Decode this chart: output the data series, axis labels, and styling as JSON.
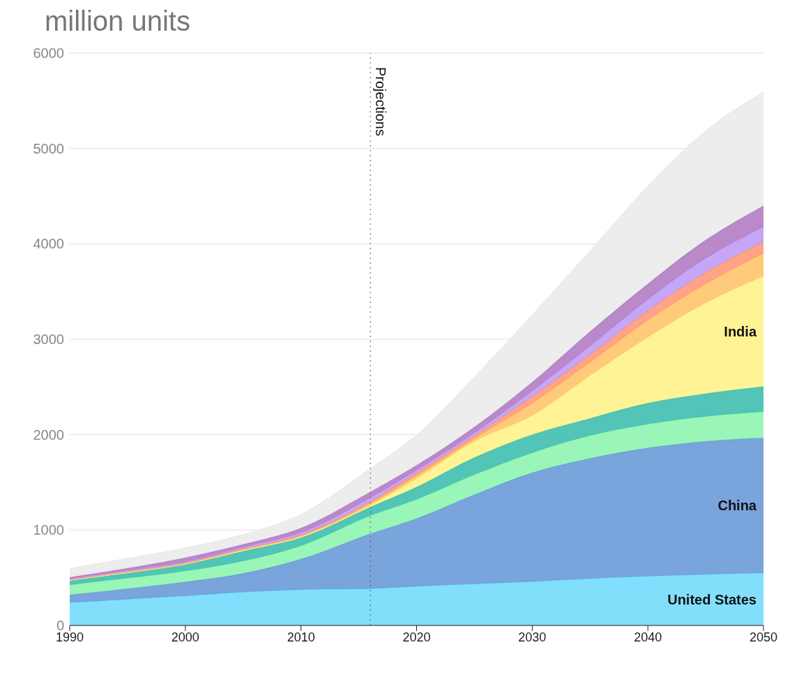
{
  "chart_data": {
    "type": "area",
    "ylabel": "million units",
    "stacked": true,
    "grid": "y",
    "x": [
      1990,
      1995,
      2000,
      2005,
      2010,
      2016,
      2020,
      2025,
      2030,
      2035,
      2040,
      2045,
      2050
    ],
    "xlim": [
      1990,
      2050
    ],
    "xticks": [
      1990,
      2000,
      2010,
      2020,
      2030,
      2040,
      2050
    ],
    "ylim": [
      0,
      6000
    ],
    "yticks": [
      0,
      1000,
      2000,
      3000,
      4000,
      5000,
      6000
    ],
    "ref_lines": [
      {
        "axis": "x",
        "value": 2016,
        "label": "Projections",
        "line_style": "dotted",
        "color": "#555555"
      }
    ],
    "series": [
      {
        "name": "United States",
        "color": "#74dcfc",
        "values": [
          240,
          275,
          310,
          350,
          375,
          385,
          410,
          435,
          460,
          490,
          515,
          535,
          550
        ]
      },
      {
        "name": "China",
        "color": "#6b9ad8",
        "values": [
          80,
          110,
          145,
          195,
          320,
          575,
          710,
          935,
          1140,
          1260,
          1345,
          1395,
          1415
        ]
      },
      {
        "color": "#8ef5b0",
        "values": [
          105,
          110,
          115,
          130,
          140,
          190,
          200,
          210,
          210,
          240,
          250,
          260,
          275
        ]
      },
      {
        "color": "#3fbfb0",
        "values": [
          45,
          55,
          70,
          105,
          85,
          90,
          130,
          180,
          190,
          180,
          220,
          240,
          265
        ]
      },
      {
        "name": "India",
        "color": "#fff38a",
        "values": [
          5,
          6,
          6,
          8,
          10,
          20,
          90,
          170,
          200,
          450,
          690,
          950,
          1155
        ]
      },
      {
        "color": "#ffc46b",
        "values": [
          5,
          6,
          6,
          8,
          10,
          20,
          30,
          30,
          130,
          140,
          180,
          200,
          240
        ]
      },
      {
        "color": "#ff9a7a",
        "values": [
          5,
          6,
          6,
          8,
          10,
          20,
          30,
          30,
          70,
          80,
          100,
          120,
          120
        ]
      },
      {
        "color": "#c09cf5",
        "values": [
          5,
          10,
          12,
          16,
          25,
          40,
          30,
          30,
          60,
          90,
          120,
          150,
          160
        ]
      },
      {
        "color": "#b27cc4",
        "values": [
          15,
          22,
          40,
          30,
          45,
          60,
          50,
          60,
          90,
          150,
          160,
          190,
          220
        ]
      },
      {
        "color": "#ebebeb",
        "values": [
          90,
          100,
          100,
          100,
          140,
          240,
          310,
          520,
          700,
          840,
          1020,
          1140,
          1190
        ]
      }
    ]
  }
}
